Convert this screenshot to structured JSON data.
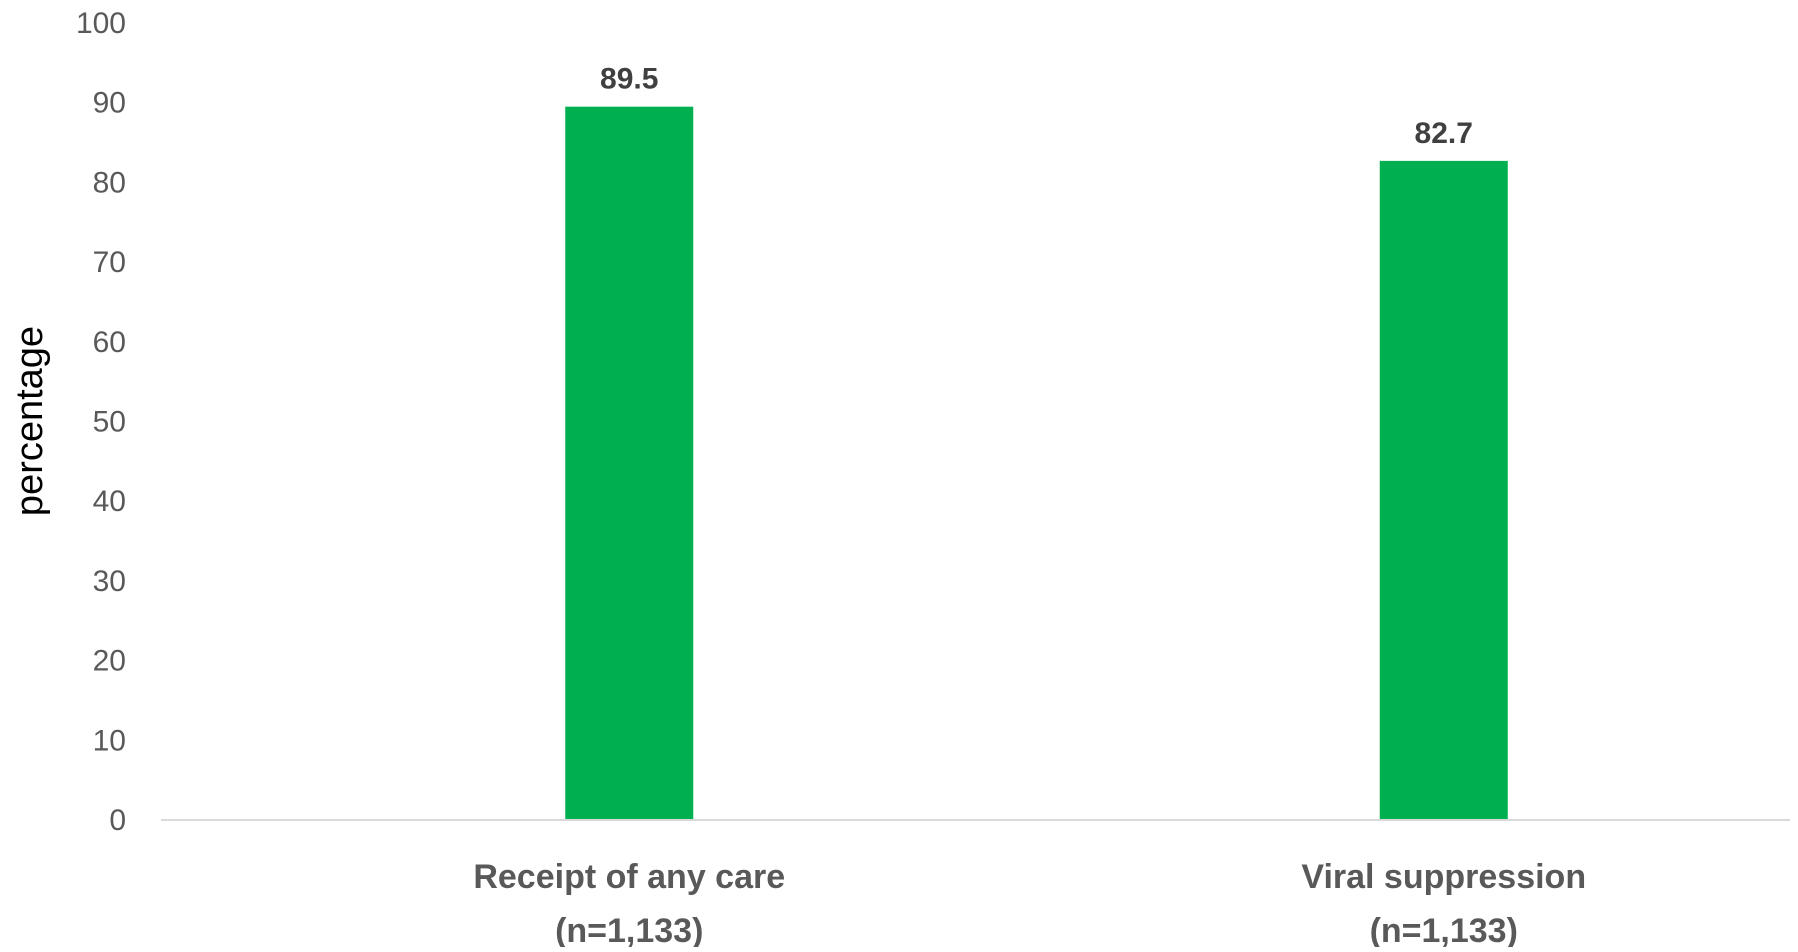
{
  "chart_data": {
    "type": "bar",
    "title": "",
    "xlabel": "",
    "ylabel": "percentage",
    "ylim": [
      0,
      100
    ],
    "yticks": [
      0,
      10,
      20,
      30,
      40,
      50,
      60,
      70,
      80,
      90,
      100
    ],
    "categories": [
      [
        "Receipt of any care",
        "(n=1,133)"
      ],
      [
        "Viral suppression",
        "(n=1,133)"
      ]
    ],
    "values": [
      89.5,
      82.7
    ],
    "data_labels": [
      "89.5",
      "82.7"
    ],
    "grid": false,
    "legend": "none",
    "colors": {
      "bar": "#00b050",
      "axis_line": "#d9d9d9"
    }
  }
}
